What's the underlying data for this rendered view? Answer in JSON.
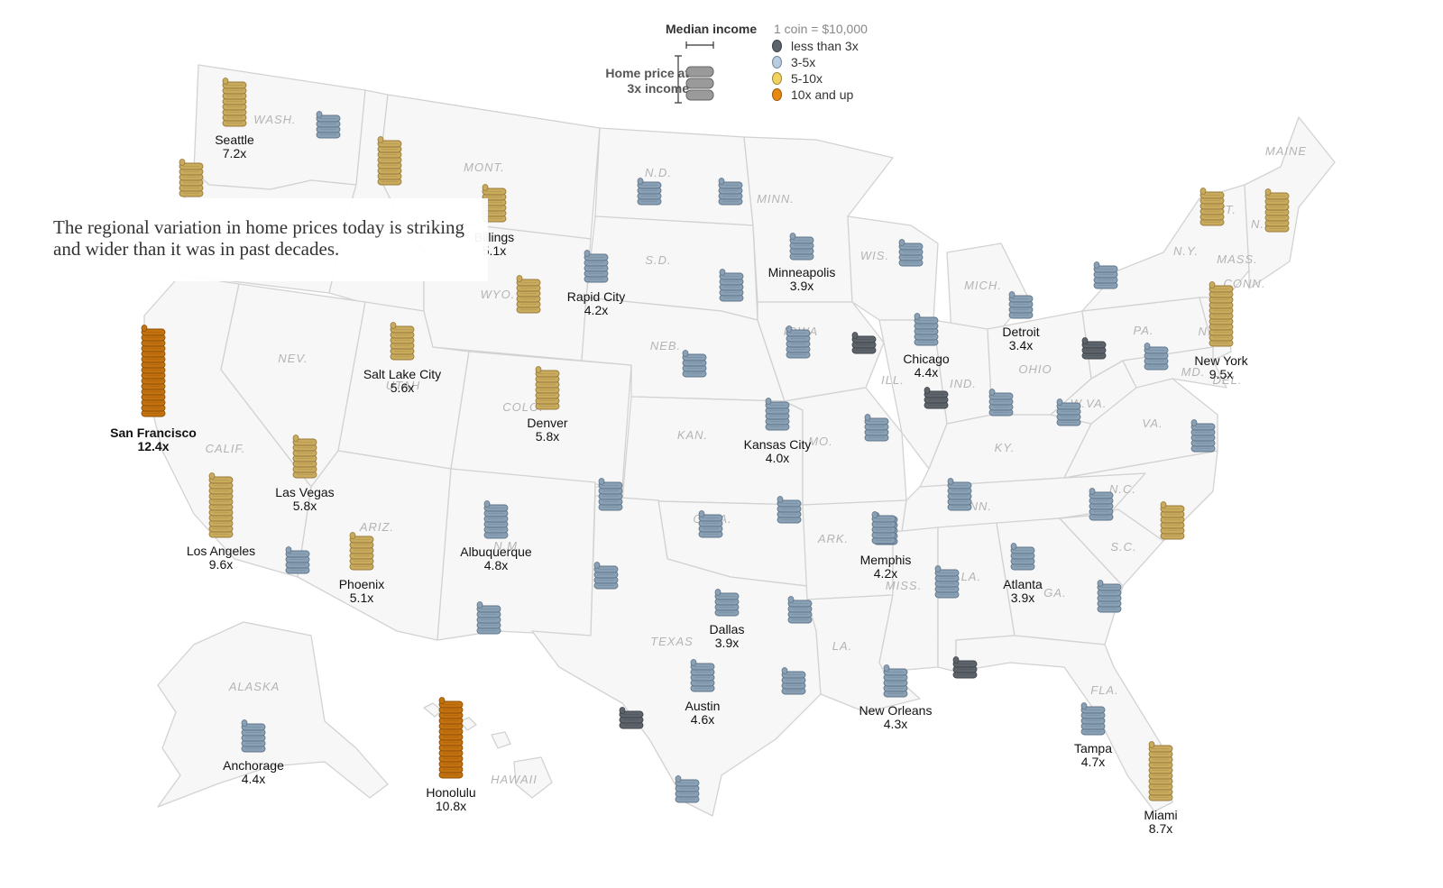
{
  "legend": {
    "income_title": "Median income",
    "coin_note": "1 coin = $10,000",
    "home_title_line1": "Home price at",
    "home_title_line2": "3x income",
    "categories": [
      {
        "label": "less than 3x",
        "color": "#5e646b"
      },
      {
        "label": "3-5x",
        "color": "#8aa1b5"
      },
      {
        "label": "5-10x",
        "color": "#c9ab5e"
      },
      {
        "label": "10x and up",
        "color": "#c4720f"
      }
    ]
  },
  "caption": "The regional variation in home prices today is striking and wider than it was in past decades.",
  "state_labels": [
    "WASH.",
    "MONT.",
    "N.D.",
    "MINN.",
    "S.D.",
    "WYO.",
    "NEB.",
    "IOWA",
    "WIS.",
    "MICH.",
    "NEV.",
    "CALIF.",
    "UTAH",
    "COLO.",
    "KAN.",
    "MO.",
    "ILL.",
    "IND.",
    "OHIO",
    "PA.",
    "N.Y.",
    "VT.",
    "N.H.",
    "MAINE",
    "MASS.",
    "CONN.",
    "N.J.",
    "DEL.",
    "MD.",
    "W.VA.",
    "VA.",
    "KY.",
    "TENN.",
    "N.C.",
    "S.C.",
    "GA.",
    "ALA.",
    "MISS.",
    "ARK.",
    "LA.",
    "OKLA.",
    "TEXAS",
    "N.M.",
    "ARIZ.",
    "FLA.",
    "ALASKA",
    "HAWAII"
  ],
  "cities": [
    {
      "name": "Seattle",
      "ratio": "7.2x",
      "value": 7.2,
      "category": "5-10x"
    },
    {
      "name": "Billings",
      "ratio": "5.1x",
      "value": 5.1,
      "category": "5-10x"
    },
    {
      "name": "Rapid City",
      "ratio": "4.2x",
      "value": 4.2,
      "category": "3-5x"
    },
    {
      "name": "Minneapolis",
      "ratio": "3.9x",
      "value": 3.9,
      "category": "3-5x"
    },
    {
      "name": "Detroit",
      "ratio": "3.4x",
      "value": 3.4,
      "category": "3-5x"
    },
    {
      "name": "Chicago",
      "ratio": "4.4x",
      "value": 4.4,
      "category": "3-5x"
    },
    {
      "name": "New York",
      "ratio": "9.5x",
      "value": 9.5,
      "category": "5-10x"
    },
    {
      "name": "San Francisco",
      "ratio": "12.4x",
      "value": 12.4,
      "category": "10x and up",
      "bold": true
    },
    {
      "name": "Salt Lake City",
      "ratio": "5.6x",
      "value": 5.6,
      "category": "5-10x"
    },
    {
      "name": "Denver",
      "ratio": "5.8x",
      "value": 5.8,
      "category": "5-10x"
    },
    {
      "name": "Kansas City",
      "ratio": "4.0x",
      "value": 4.0,
      "category": "3-5x"
    },
    {
      "name": "Las Vegas",
      "ratio": "5.8x",
      "value": 5.8,
      "category": "5-10x"
    },
    {
      "name": "Los Angeles",
      "ratio": "9.6x",
      "value": 9.6,
      "category": "5-10x"
    },
    {
      "name": "Phoenix",
      "ratio": "5.1x",
      "value": 5.1,
      "category": "5-10x"
    },
    {
      "name": "Albuquerque",
      "ratio": "4.8x",
      "value": 4.8,
      "category": "3-5x"
    },
    {
      "name": "Memphis",
      "ratio": "4.2x",
      "value": 4.2,
      "category": "3-5x"
    },
    {
      "name": "Atlanta",
      "ratio": "3.9x",
      "value": 3.9,
      "category": "3-5x"
    },
    {
      "name": "Dallas",
      "ratio": "3.9x",
      "value": 3.9,
      "category": "3-5x"
    },
    {
      "name": "Austin",
      "ratio": "4.6x",
      "value": 4.6,
      "category": "3-5x"
    },
    {
      "name": "New Orleans",
      "ratio": "4.3x",
      "value": 4.3,
      "category": "3-5x"
    },
    {
      "name": "Tampa",
      "ratio": "4.7x",
      "value": 4.7,
      "category": "3-5x"
    },
    {
      "name": "Miami",
      "ratio": "8.7x",
      "value": 8.7,
      "category": "5-10x"
    },
    {
      "name": "Anchorage",
      "ratio": "4.4x",
      "value": 4.4,
      "category": "3-5x"
    },
    {
      "name": "Honolulu",
      "ratio": "10.8x",
      "value": 10.8,
      "category": "10x and up"
    }
  ],
  "unlabeled_stacks": [
    {
      "category": "3-5x",
      "coins": 4
    },
    {
      "category": "5-10x",
      "coins": 6
    },
    {
      "category": "5-10x",
      "coins": 8
    },
    {
      "category": "5-10x",
      "coins": 6
    },
    {
      "category": "3-5x",
      "coins": 4
    },
    {
      "category": "3-5x",
      "coins": 4
    },
    {
      "category": "3-5x",
      "coins": 5
    },
    {
      "category": "3-5x",
      "coins": 4
    },
    {
      "category": "3-5x",
      "coins": 4
    },
    {
      "category": "5-10x",
      "coins": 7
    },
    {
      "category": "5-10x",
      "coins": 6
    },
    {
      "category": "3-5x",
      "coins": 5
    },
    {
      "category": "3-5x",
      "coins": 4
    },
    {
      "category": "less than 3x",
      "coins": 3
    },
    {
      "category": "less than 3x",
      "coins": 3
    },
    {
      "category": "3-5x",
      "coins": 4
    },
    {
      "category": "less than 3x",
      "coins": 3
    },
    {
      "category": "3-5x",
      "coins": 4
    },
    {
      "category": "3-5x",
      "coins": 4
    },
    {
      "category": "3-5x",
      "coins": 4
    },
    {
      "category": "3-5x",
      "coins": 5
    },
    {
      "category": "5-10x",
      "coins": 6
    },
    {
      "category": "3-5x",
      "coins": 5
    },
    {
      "category": "3-5x",
      "coins": 5
    },
    {
      "category": "3-5x",
      "coins": 4
    },
    {
      "category": "3-5x",
      "coins": 5
    },
    {
      "category": "3-5x",
      "coins": 4
    },
    {
      "category": "3-5x",
      "coins": 5
    },
    {
      "category": "3-5x",
      "coins": 5
    },
    {
      "category": "3-5x",
      "coins": 5
    },
    {
      "category": "3-5x",
      "coins": 4
    },
    {
      "category": "3-5x",
      "coins": 5
    },
    {
      "category": "3-5x",
      "coins": 4
    },
    {
      "category": "3-5x",
      "coins": 4
    },
    {
      "category": "less than 3x",
      "coins": 3
    },
    {
      "category": "less than 3x",
      "coins": 3
    },
    {
      "category": "3-5x",
      "coins": 4
    },
    {
      "category": "3-5x",
      "coins": 4
    }
  ]
}
